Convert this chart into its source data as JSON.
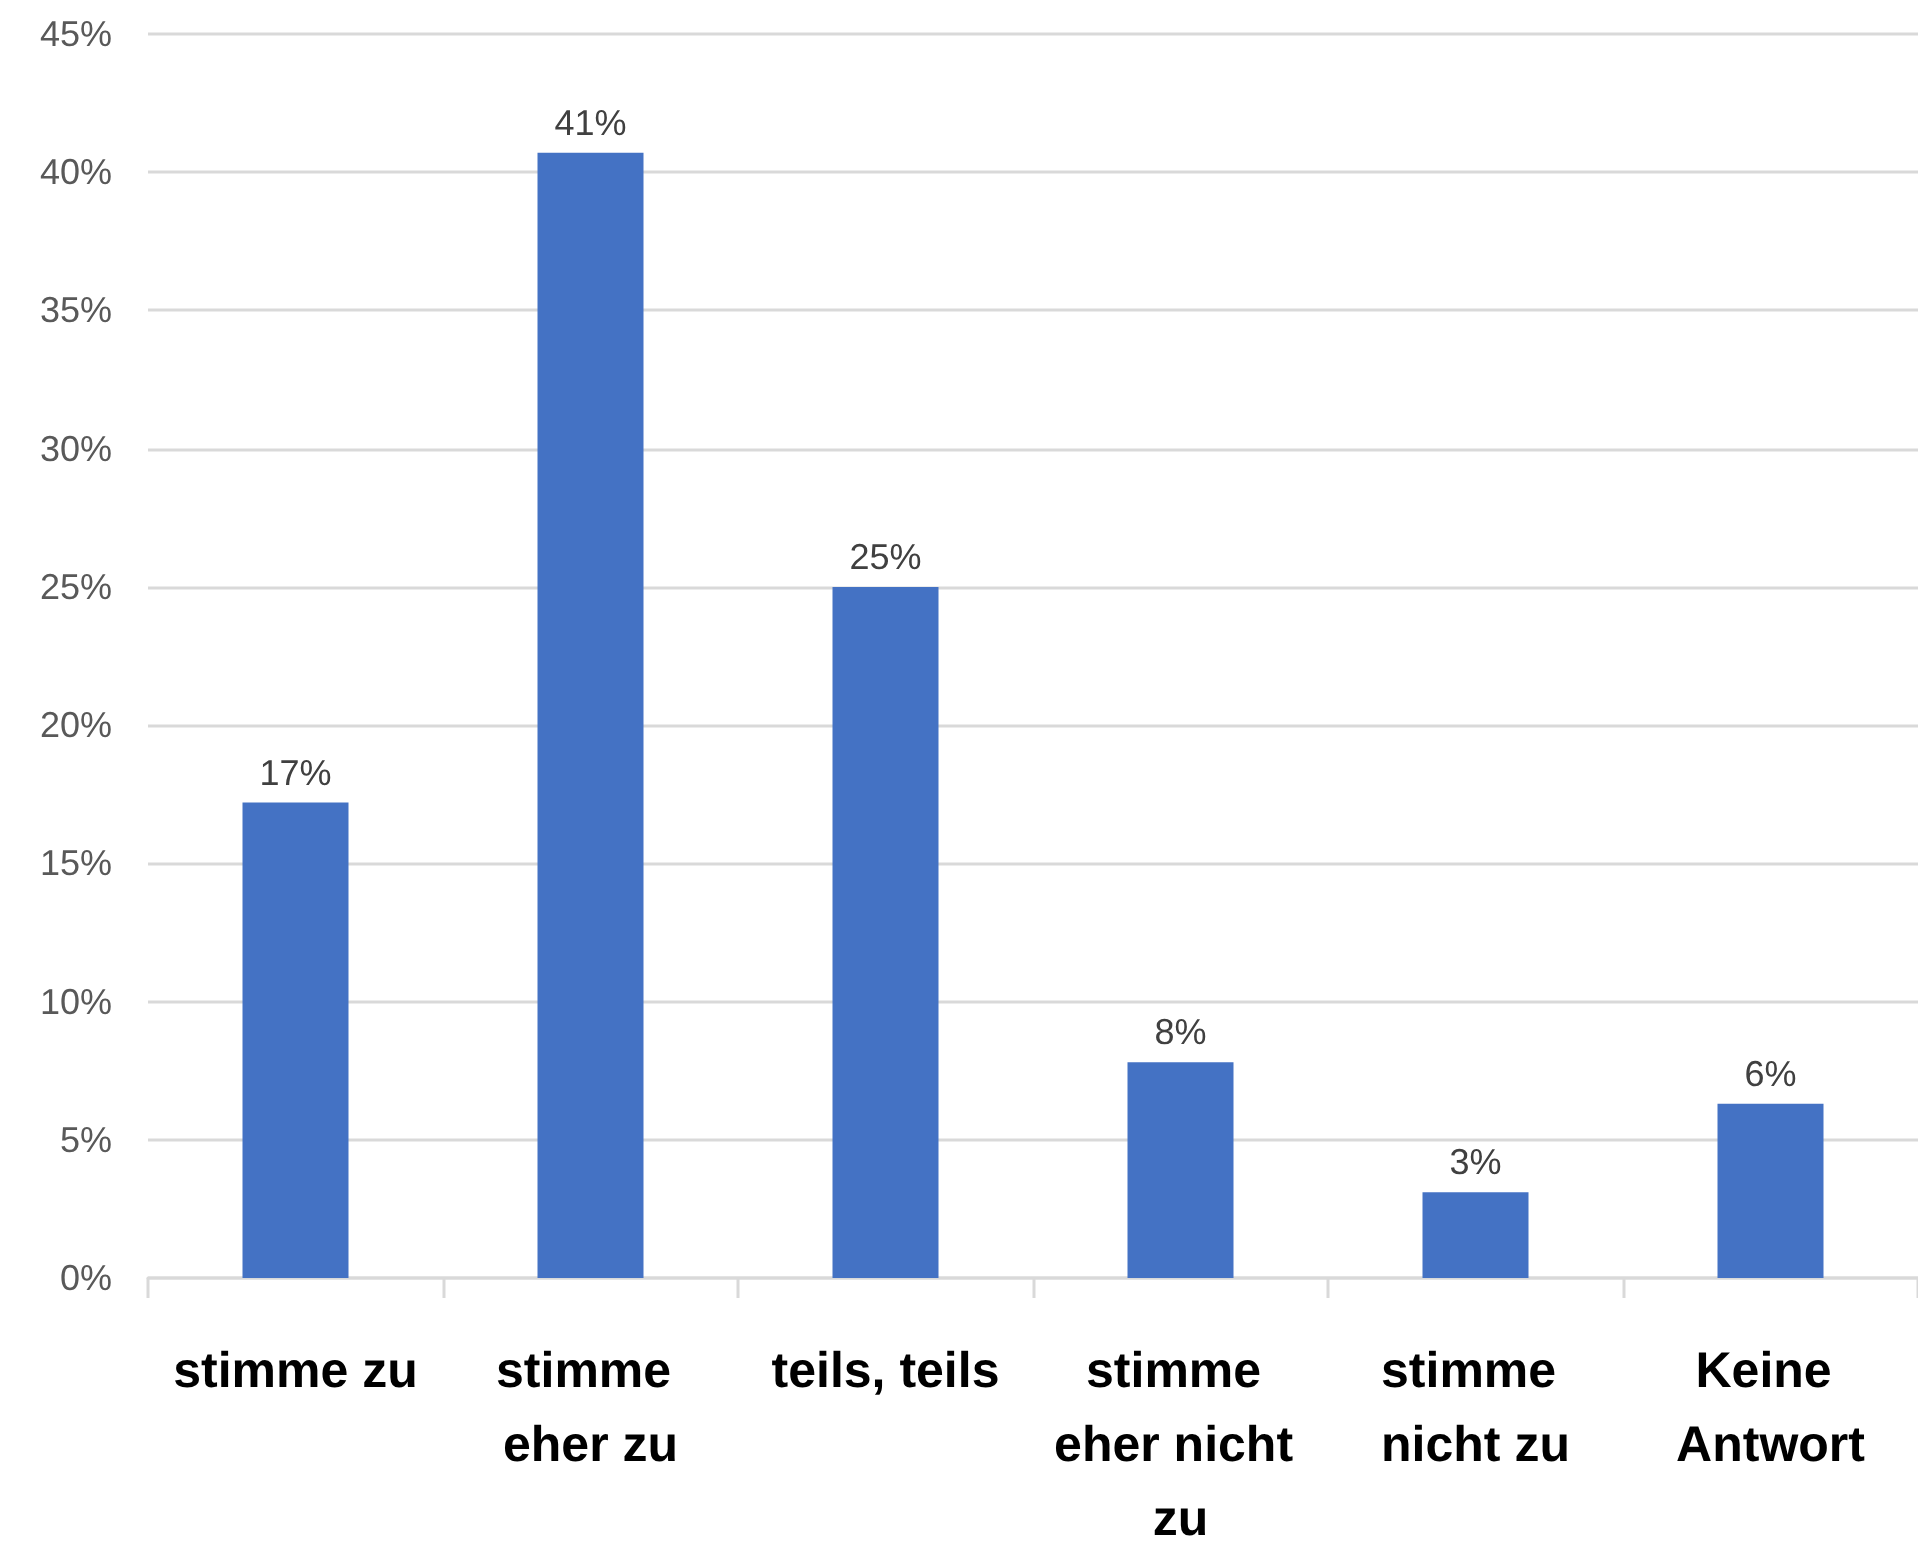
{
  "chart_data": {
    "type": "bar",
    "categories": [
      "stimme zu",
      "stimme eher zu",
      "teils, teils",
      "stimme eher nicht zu",
      "stimme nicht zu",
      "Keine Antwort"
    ],
    "values": [
      17.2,
      40.7,
      25.0,
      7.8,
      3.1,
      6.3
    ],
    "value_labels": [
      "17%",
      "41%",
      "25%",
      "8%",
      "3%",
      "6%"
    ],
    "color": "#4472c4",
    "ylim": [
      0,
      45
    ],
    "yticks": [
      {
        "value": 0,
        "label": "0%"
      },
      {
        "value": 5,
        "label": "5%"
      },
      {
        "value": 10,
        "label": "10%"
      },
      {
        "value": 15,
        "label": "15%"
      },
      {
        "value": 20,
        "label": "20%"
      },
      {
        "value": 25,
        "label": "25%"
      },
      {
        "value": 30,
        "label": "30%"
      },
      {
        "value": 35,
        "label": "35%"
      },
      {
        "value": 40,
        "label": "40%"
      },
      {
        "value": 45,
        "label": "45%"
      }
    ],
    "grid": "y"
  }
}
